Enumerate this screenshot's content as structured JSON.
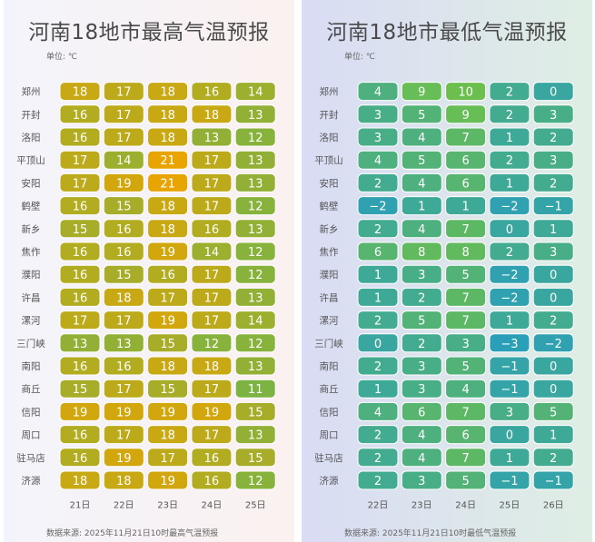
{
  "chart_data": [
    {
      "type": "heatmap",
      "title": "河南18地市最高气温预报",
      "unit_label": "单位: ℃",
      "source": "数据来源:  2025年11月21日10时最高气温预报",
      "categories": [
        "郑州",
        "开封",
        "洛阳",
        "平顶山",
        "安阳",
        "鹤壁",
        "新乡",
        "焦作",
        "濮阳",
        "许昌",
        "漯河",
        "三门峡",
        "南阳",
        "商丘",
        "信阳",
        "周口",
        "驻马店",
        "济源"
      ],
      "x": [
        "21日",
        "22日",
        "23日",
        "24日",
        "25日"
      ],
      "values": [
        [
          18,
          17,
          18,
          16,
          14
        ],
        [
          16,
          17,
          18,
          18,
          13
        ],
        [
          16,
          17,
          18,
          13,
          12
        ],
        [
          17,
          14,
          21,
          17,
          13
        ],
        [
          17,
          19,
          21,
          17,
          13
        ],
        [
          16,
          15,
          18,
          17,
          12
        ],
        [
          15,
          16,
          18,
          16,
          13
        ],
        [
          16,
          16,
          19,
          14,
          12
        ],
        [
          16,
          15,
          16,
          17,
          12
        ],
        [
          16,
          18,
          17,
          17,
          13
        ],
        [
          17,
          17,
          19,
          17,
          14
        ],
        [
          13,
          13,
          15,
          12,
          12
        ],
        [
          16,
          16,
          18,
          18,
          13
        ],
        [
          15,
          17,
          15,
          17,
          11
        ],
        [
          19,
          19,
          19,
          19,
          15
        ],
        [
          16,
          17,
          18,
          17,
          13
        ],
        [
          16,
          19,
          17,
          16,
          15
        ],
        [
          18,
          18,
          19,
          16,
          12
        ]
      ],
      "colors": {
        "low": "#7cb342",
        "high": "#e8a400",
        "text": "#ffffff"
      }
    },
    {
      "type": "heatmap",
      "title": "河南18地市最低气温预报",
      "unit_label": "单位: ℃",
      "source": "数据来源:  2025年11月21日10时最低气温预报",
      "categories": [
        "郑州",
        "开封",
        "洛阳",
        "平顶山",
        "安阳",
        "鹤壁",
        "新乡",
        "焦作",
        "濮阳",
        "许昌",
        "漯河",
        "三门峡",
        "南阳",
        "商丘",
        "信阳",
        "周口",
        "驻马店",
        "济源"
      ],
      "x": [
        "22日",
        "23日",
        "24日",
        "25日",
        "26日"
      ],
      "values": [
        [
          4,
          9,
          10,
          2,
          0
        ],
        [
          3,
          5,
          9,
          2,
          3
        ],
        [
          3,
          4,
          7,
          1,
          2
        ],
        [
          4,
          5,
          6,
          2,
          3
        ],
        [
          2,
          4,
          6,
          1,
          2
        ],
        [
          -2,
          1,
          1,
          -2,
          -1
        ],
        [
          2,
          4,
          7,
          0,
          1
        ],
        [
          6,
          8,
          8,
          2,
          3
        ],
        [
          1,
          3,
          5,
          -2,
          0
        ],
        [
          1,
          2,
          7,
          -2,
          0
        ],
        [
          2,
          5,
          7,
          1,
          2
        ],
        [
          0,
          2,
          3,
          -3,
          -2
        ],
        [
          2,
          3,
          5,
          -1,
          0
        ],
        [
          1,
          3,
          4,
          -1,
          0
        ],
        [
          4,
          6,
          7,
          3,
          5
        ],
        [
          2,
          4,
          6,
          0,
          1
        ],
        [
          2,
          4,
          7,
          1,
          2
        ],
        [
          2,
          3,
          5,
          -1,
          -1
        ]
      ],
      "colors": {
        "low": "#2a9fb8",
        "high": "#6cbf4e",
        "text": "#ffffff"
      }
    }
  ]
}
